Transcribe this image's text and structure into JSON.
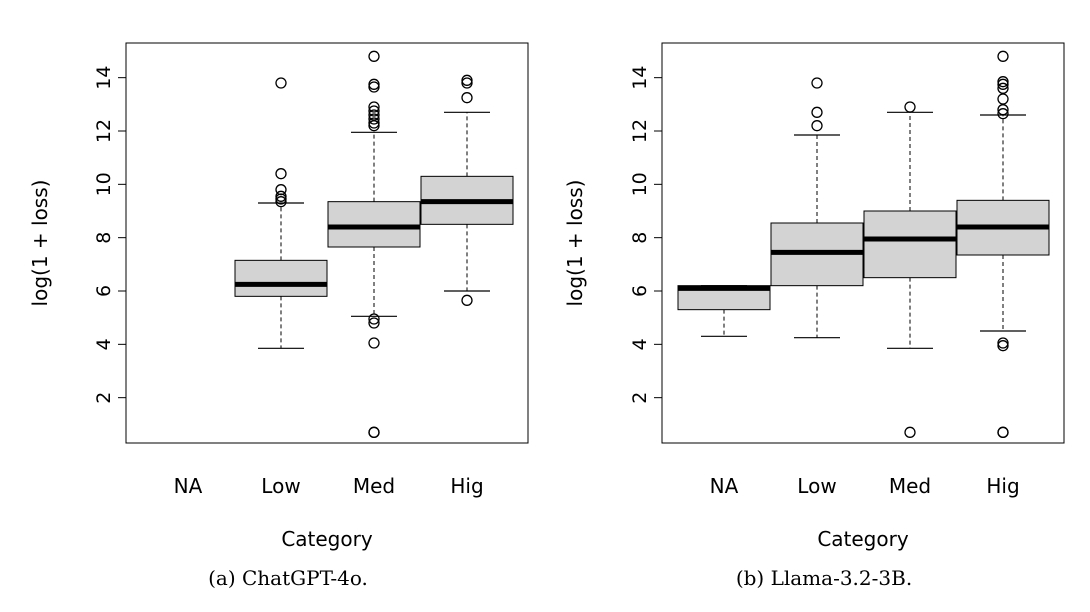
{
  "chart_data": [
    {
      "type": "box",
      "caption": "(a) ChatGPT-4o.",
      "xlabel": "Category",
      "ylabel": "log(1 + loss)",
      "categories": [
        "NA",
        "Low",
        "Med",
        "Hig"
      ],
      "yticks": [
        "2",
        "4",
        "6",
        "8",
        "10",
        "12",
        "14"
      ],
      "ylim": [
        0.3,
        15.3
      ],
      "boxes": [
        null,
        {
          "whisker_low": 3.85,
          "q1": 5.8,
          "median": 6.25,
          "q3": 7.15,
          "whisker_high": 9.3,
          "outliers": [
            9.35,
            9.45,
            9.55,
            9.8,
            10.4,
            13.8
          ]
        },
        {
          "whisker_low": 5.05,
          "q1": 7.65,
          "median": 8.4,
          "q3": 9.35,
          "whisker_high": 11.95,
          "outliers": [
            0.7,
            0.7,
            4.05,
            4.8,
            4.95,
            12.2,
            12.3,
            12.45,
            12.6,
            12.75,
            12.9,
            13.65,
            13.75,
            14.8
          ]
        },
        {
          "whisker_low": 6.0,
          "q1": 8.5,
          "median": 9.35,
          "q3": 10.3,
          "whisker_high": 12.7,
          "outliers": [
            5.65,
            13.25,
            13.8,
            13.9
          ]
        }
      ]
    },
    {
      "type": "box",
      "caption": "(b) Llama-3.2-3B.",
      "xlabel": "Category",
      "ylabel": "log(1 + loss)",
      "categories": [
        "NA",
        "Low",
        "Med",
        "Hig"
      ],
      "yticks": [
        "2",
        "4",
        "6",
        "8",
        "10",
        "12",
        "14"
      ],
      "ylim": [
        0.3,
        15.3
      ],
      "boxes": [
        {
          "whisker_low": 4.3,
          "q1": 5.3,
          "median": 6.1,
          "q3": 6.2,
          "whisker_high": 6.2,
          "outliers": []
        },
        {
          "whisker_low": 4.25,
          "q1": 6.2,
          "median": 7.45,
          "q3": 8.55,
          "whisker_high": 11.85,
          "outliers": [
            12.2,
            12.7,
            13.8
          ]
        },
        {
          "whisker_low": 3.85,
          "q1": 6.5,
          "median": 7.95,
          "q3": 9.0,
          "whisker_high": 12.7,
          "outliers": [
            0.7,
            12.9
          ]
        },
        {
          "whisker_low": 4.5,
          "q1": 7.35,
          "median": 8.4,
          "q3": 9.4,
          "whisker_high": 12.6,
          "outliers": [
            0.7,
            0.7,
            3.95,
            4.05,
            12.65,
            12.8,
            13.2,
            13.6,
            13.75,
            13.85,
            14.8
          ]
        }
      ]
    }
  ]
}
